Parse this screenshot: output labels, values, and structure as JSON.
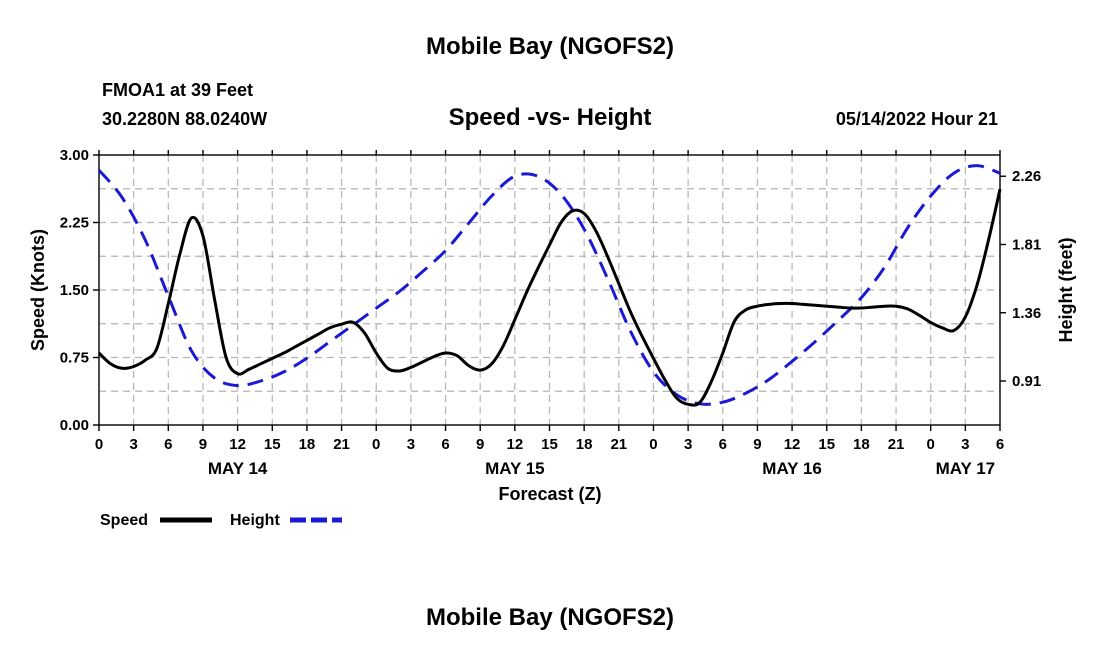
{
  "header": {
    "main_title": "Mobile Bay (NGOFS2)",
    "station_line": "FMOA1 at 39 Feet",
    "coords_line": "30.2280N  88.0240W",
    "plot_title": "Speed -vs- Height",
    "date_line": "05/14/2022 Hour 21"
  },
  "footer": {
    "repeat_title": "Mobile Bay (NGOFS2)"
  },
  "legend": {
    "speed_label": "Speed",
    "height_label": "Height"
  },
  "colors": {
    "speed": "#000000",
    "height": "#1a1ad4",
    "grid": "#b4b4b4"
  },
  "chart_data": {
    "type": "line",
    "title": "Speed -vs- Height",
    "xlabel": "Forecast (Z)",
    "ylabel": "Speed (Knots)",
    "y2label": "Height (feet)",
    "x_unit": "hours since 2022-05-14 00Z",
    "xlim": [
      0,
      78
    ],
    "ylim": [
      0,
      3.0
    ],
    "y2lim": [
      0.62,
      2.4
    ],
    "yticks": [
      0,
      0.75,
      1.5,
      2.25,
      3.0
    ],
    "ytick_labels": [
      "0.00",
      "0.75",
      "1.50",
      "2.25",
      "3.00"
    ],
    "y2ticks": [
      0.91,
      1.36,
      1.81,
      2.26
    ],
    "y2tick_labels": [
      "0.91",
      "1.36",
      "1.81",
      "2.26"
    ],
    "xticks": [
      0,
      3,
      6,
      9,
      12,
      15,
      18,
      21,
      24,
      27,
      30,
      33,
      36,
      39,
      42,
      45,
      48,
      51,
      54,
      57,
      60,
      63,
      66,
      69,
      72,
      75,
      78
    ],
    "xtick_labels": [
      "0",
      "3",
      "6",
      "9",
      "12",
      "15",
      "18",
      "21",
      "0",
      "3",
      "6",
      "9",
      "12",
      "15",
      "18",
      "21",
      "0",
      "3",
      "6",
      "9",
      "12",
      "15",
      "18",
      "21",
      "0",
      "3",
      "6"
    ],
    "day_labels": [
      {
        "x": 12,
        "label": "MAY 14"
      },
      {
        "x": 36,
        "label": "MAY 15"
      },
      {
        "x": 60,
        "label": "MAY 16"
      },
      {
        "x": 75,
        "label": "MAY 17"
      }
    ],
    "grid": true,
    "legend_position": "bottom-left",
    "series": [
      {
        "name": "Speed",
        "axis": "left",
        "style": "solid",
        "x": [
          0,
          1,
          2,
          3,
          4,
          5,
          6,
          7,
          8,
          9,
          10,
          11,
          12,
          13,
          14,
          15,
          16,
          17,
          18,
          19,
          20,
          21,
          22,
          23,
          24,
          25,
          26,
          27,
          28,
          29,
          30,
          31,
          32,
          33,
          34,
          35,
          36,
          37,
          38,
          39,
          40,
          41,
          42,
          43,
          44,
          45,
          46,
          47,
          48,
          49,
          50,
          51,
          52,
          53,
          54,
          55,
          56,
          57,
          58,
          59,
          60,
          61,
          62,
          63,
          64,
          65,
          66,
          67,
          68,
          69,
          70,
          71,
          72,
          73,
          74,
          75,
          76,
          77,
          78
        ],
        "values": [
          0.8,
          0.68,
          0.63,
          0.65,
          0.72,
          0.85,
          1.35,
          1.9,
          2.3,
          2.1,
          1.4,
          0.75,
          0.57,
          0.62,
          0.68,
          0.74,
          0.8,
          0.87,
          0.94,
          1.01,
          1.08,
          1.12,
          1.14,
          1.02,
          0.8,
          0.63,
          0.6,
          0.64,
          0.7,
          0.76,
          0.8,
          0.77,
          0.66,
          0.61,
          0.68,
          0.88,
          1.17,
          1.47,
          1.74,
          2.0,
          2.25,
          2.38,
          2.35,
          2.16,
          1.88,
          1.57,
          1.26,
          0.99,
          0.74,
          0.5,
          0.3,
          0.23,
          0.25,
          0.48,
          0.8,
          1.15,
          1.28,
          1.32,
          1.34,
          1.35,
          1.35,
          1.34,
          1.33,
          1.32,
          1.31,
          1.3,
          1.3,
          1.31,
          1.32,
          1.32,
          1.29,
          1.22,
          1.14,
          1.08,
          1.05,
          1.2,
          1.55,
          2.05,
          2.62
        ]
      },
      {
        "name": "Height",
        "axis": "right",
        "style": "dashed",
        "x": [
          0,
          2,
          4,
          6,
          8,
          10,
          12,
          14,
          16,
          18,
          20,
          22,
          24,
          26,
          28,
          30,
          32,
          34,
          36,
          38,
          40,
          42,
          44,
          46,
          48,
          50,
          52,
          54,
          56,
          58,
          60,
          62,
          64,
          66,
          68,
          70,
          72,
          74,
          76,
          78
        ],
        "values": [
          2.3,
          2.12,
          1.84,
          1.47,
          1.11,
          0.93,
          0.88,
          0.91,
          0.97,
          1.06,
          1.17,
          1.28,
          1.39,
          1.5,
          1.63,
          1.77,
          1.95,
          2.13,
          2.26,
          2.26,
          2.14,
          1.91,
          1.59,
          1.24,
          0.97,
          0.82,
          0.76,
          0.77,
          0.83,
          0.92,
          1.04,
          1.17,
          1.31,
          1.46,
          1.66,
          1.92,
          2.13,
          2.28,
          2.33,
          2.28
        ]
      }
    ]
  }
}
